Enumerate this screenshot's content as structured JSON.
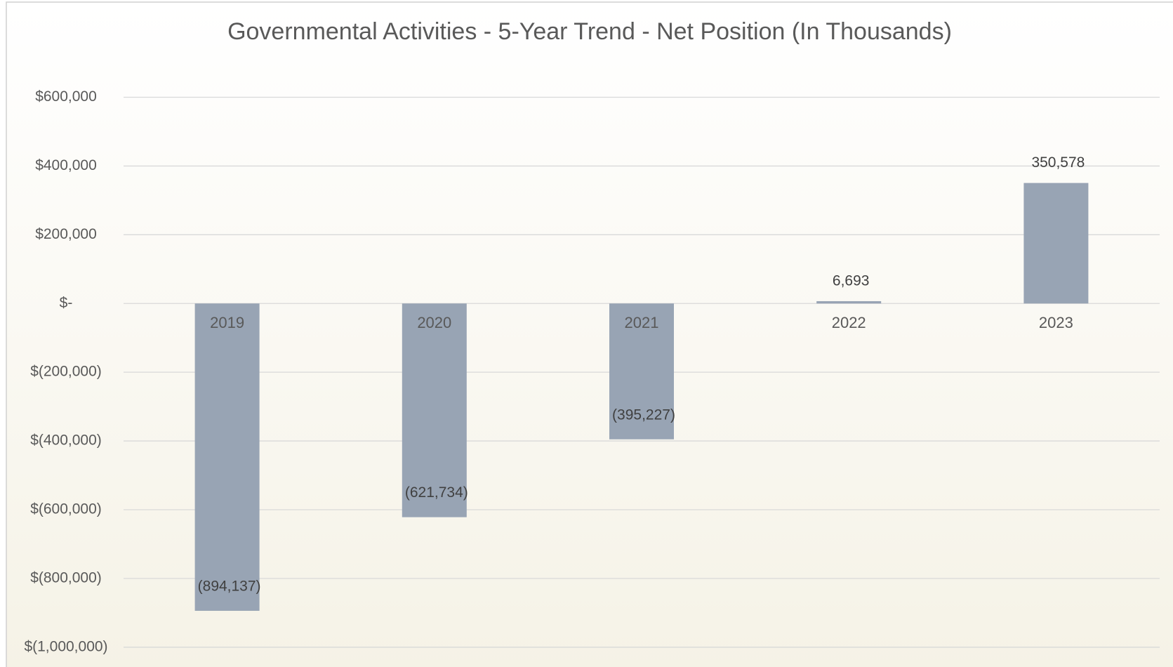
{
  "chart_data": {
    "type": "bar",
    "title": "Governmental Activities - 5-Year Trend - Net Position (In Thousands)",
    "categories": [
      "2019",
      "2020",
      "2021",
      "2022",
      "2023"
    ],
    "values": [
      -894137,
      -621734,
      -395227,
      6693,
      350578
    ],
    "value_labels": [
      "(894,137)",
      "(621,734)",
      "(395,227)",
      "6,693",
      "350,578"
    ],
    "color": "#98a4b4",
    "ylim": [
      -1000000,
      600000
    ],
    "yticks": [
      {
        "value": -1000000,
        "label": "$(1,000,000)"
      },
      {
        "value": -800000,
        "label": "$(800,000)"
      },
      {
        "value": -600000,
        "label": "$(600,000)"
      },
      {
        "value": -400000,
        "label": "$(400,000)"
      },
      {
        "value": -200000,
        "label": "$(200,000)"
      },
      {
        "value": 0,
        "label": "$-"
      },
      {
        "value": 200000,
        "label": "$200,000"
      },
      {
        "value": 400000,
        "label": "$400,000"
      },
      {
        "value": 600000,
        "label": "$600,000"
      }
    ],
    "grid": true
  }
}
